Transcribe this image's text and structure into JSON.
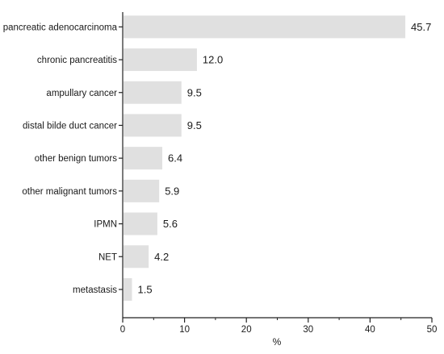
{
  "chart_data": {
    "type": "bar",
    "orientation": "horizontal",
    "title": "",
    "xlabel": "%",
    "ylabel": "",
    "xlim": [
      0,
      50
    ],
    "xticks": [
      0,
      10,
      20,
      30,
      40,
      50
    ],
    "grid": false,
    "bar_color": "#e0e0e0",
    "categories": [
      "pancreatic adenocarcinoma",
      "chronic pancreatitis",
      "ampullary cancer",
      "distal bilde duct cancer",
      "other benign tumors",
      "other malignant tumors",
      "IPMN",
      "NET",
      "metastasis"
    ],
    "values": [
      45.7,
      12.0,
      9.5,
      9.5,
      6.4,
      5.9,
      5.6,
      4.2,
      1.5
    ],
    "value_labels": [
      "45.7",
      "12.0",
      "9.5",
      "9.5",
      "6.4",
      "5.9",
      "5.6",
      "4.2",
      "1.5"
    ]
  }
}
